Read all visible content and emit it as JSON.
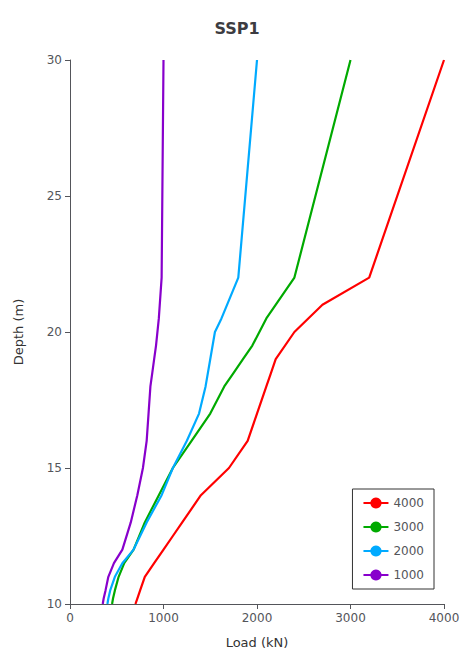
{
  "chart_data": {
    "type": "line",
    "title": "SSP1",
    "xlabel": "Load (kN)",
    "ylabel": "Depth (m)",
    "xlim": [
      0,
      4000
    ],
    "ylim": [
      10,
      30
    ],
    "xticks": [
      0,
      1000,
      2000,
      3000,
      4000
    ],
    "yticks": [
      10,
      15,
      20,
      25,
      30
    ],
    "grid": false,
    "legend": "lower right",
    "series": [
      {
        "name": "4000",
        "color": "#ff0000",
        "x": [
          700,
          720,
          750,
          800,
          900,
          1000,
          1100,
          1200,
          1400,
          1700,
          1900,
          2000,
          2100,
          2150,
          2200,
          2400,
          2700,
          3200,
          4000
        ],
        "values": [
          10,
          10.2,
          10.5,
          11,
          11.5,
          12,
          12.5,
          13,
          14,
          15,
          16,
          17,
          18,
          18.5,
          19,
          20,
          21,
          22,
          30
        ]
      },
      {
        "name": "3000",
        "color": "#00aa00",
        "x": [
          450,
          460,
          480,
          520,
          580,
          680,
          800,
          950,
          1100,
          1300,
          1500,
          1650,
          1750,
          1850,
          1950,
          2100,
          2400,
          3000
        ],
        "values": [
          10,
          10.2,
          10.5,
          11,
          11.5,
          12,
          13,
          14,
          15,
          16,
          17,
          18,
          18.5,
          19,
          19.5,
          20.5,
          22,
          30
        ]
      },
      {
        "name": "2000",
        "color": "#00aaff",
        "x": [
          400,
          410,
          430,
          480,
          560,
          680,
          820,
          980,
          1100,
          1250,
          1380,
          1450,
          1500,
          1550,
          1620,
          1800,
          2000
        ],
        "values": [
          10,
          10.2,
          10.5,
          11,
          11.5,
          12,
          13,
          14,
          15,
          16,
          17,
          18,
          19,
          20,
          20.5,
          22,
          30
        ]
      },
      {
        "name": "1000",
        "color": "#8800cc",
        "x": [
          350,
          360,
          380,
          410,
          470,
          560,
          650,
          720,
          780,
          820,
          840,
          860,
          880,
          900,
          920,
          950,
          980,
          1000
        ],
        "values": [
          10,
          10.2,
          10.5,
          11,
          11.5,
          12,
          13,
          14,
          15,
          16,
          17,
          18,
          18.5,
          19,
          19.5,
          20.5,
          22,
          30
        ]
      }
    ]
  }
}
